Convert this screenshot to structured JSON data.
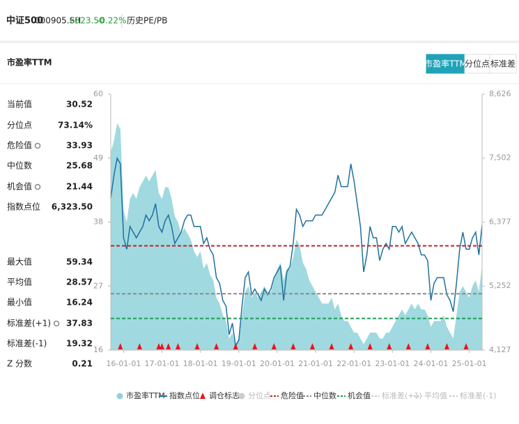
{
  "header": {
    "name": "中证500",
    "code": "000905.SH",
    "price": "6323.50",
    "change": "-0.22%",
    "link": "历史PE/PB"
  },
  "title": "市盈率TTM",
  "tabs": [
    {
      "label": "市盈率TTM",
      "active": true
    },
    {
      "label": "分位点",
      "active": false
    },
    {
      "label": "标准差",
      "active": false
    }
  ],
  "stats_top": [
    {
      "label": "当前值",
      "value": "30.52"
    },
    {
      "label": "分位点",
      "value": "73.14%"
    },
    {
      "label": "危险值",
      "value": "33.93",
      "settings": true
    },
    {
      "label": "中位数",
      "value": "25.68"
    },
    {
      "label": "机会值",
      "value": "21.44",
      "settings": true
    },
    {
      "label": "指数点位",
      "value": "6,323.50"
    }
  ],
  "stats_bottom": [
    {
      "label": "最大值",
      "value": "59.34"
    },
    {
      "label": "平均值",
      "value": "28.57"
    },
    {
      "label": "最小值",
      "value": "16.24"
    },
    {
      "label": "标准差(+1)",
      "value": "37.83",
      "settings": true
    },
    {
      "label": "标准差(-1)",
      "value": "19.32"
    },
    {
      "label": "Z 分数",
      "value": "0.21"
    }
  ],
  "chart_data": {
    "type": "area-line",
    "categories": [
      "15-09-01",
      "15-10-01",
      "15-11-01",
      "15-12-01",
      "16-01-01",
      "16-02-01",
      "16-03-01",
      "16-04-01",
      "16-05-01",
      "16-06-01",
      "16-07-01",
      "16-08-01",
      "16-09-01",
      "16-10-01",
      "16-11-01",
      "16-12-01",
      "17-01-01",
      "17-02-01",
      "17-03-01",
      "17-04-01",
      "17-05-01",
      "17-06-01",
      "17-07-01",
      "17-08-01",
      "17-09-01",
      "17-10-01",
      "17-11-01",
      "17-12-01",
      "18-01-01",
      "18-02-01",
      "18-03-01",
      "18-04-01",
      "18-05-01",
      "18-06-01",
      "18-07-01",
      "18-08-01",
      "18-09-01",
      "18-10-01",
      "18-11-01",
      "18-12-01",
      "19-01-01",
      "19-02-01",
      "19-03-01",
      "19-04-01",
      "19-05-01",
      "19-06-01",
      "19-07-01",
      "19-08-01",
      "19-09-01",
      "19-10-01",
      "19-11-01",
      "19-12-01",
      "20-01-01",
      "20-02-01",
      "20-03-01",
      "20-04-01",
      "20-05-01",
      "20-06-01",
      "20-07-01",
      "20-08-01",
      "20-09-01",
      "20-10-01",
      "20-11-01",
      "20-12-01",
      "21-01-01",
      "21-02-01",
      "21-03-01",
      "21-04-01",
      "21-05-01",
      "21-06-01",
      "21-07-01",
      "21-08-01",
      "21-09-01",
      "21-10-01",
      "21-11-01",
      "21-12-01",
      "22-01-01",
      "22-02-01",
      "22-03-01",
      "22-04-01",
      "22-05-01",
      "22-06-01",
      "22-07-01",
      "22-08-01",
      "22-09-01",
      "22-10-01",
      "22-11-01",
      "22-12-01",
      "23-01-01",
      "23-02-01",
      "23-03-01",
      "23-04-01",
      "23-05-01",
      "23-06-01",
      "23-07-01",
      "23-08-01",
      "23-09-01",
      "23-10-01",
      "23-11-01",
      "23-12-01",
      "24-01-01",
      "24-02-01",
      "24-03-01",
      "24-04-01",
      "24-05-01",
      "24-06-01",
      "24-07-01",
      "24-08-01",
      "24-09-01",
      "24-10-01",
      "24-11-01",
      "24-12-01",
      "25-01-01",
      "25-02-01",
      "25-03-01",
      "25-04-01",
      "25-05-01"
    ],
    "series": [
      {
        "name": "市盈率TTM",
        "color": "#8fd2da",
        "axis": "y",
        "values": [
          50,
          52,
          55,
          54,
          40,
          38,
          42,
          43,
          42,
          44,
          45,
          46,
          45,
          46,
          47,
          43,
          42,
          44,
          44,
          42,
          39,
          38,
          36,
          37,
          36,
          35,
          33,
          32,
          33,
          30,
          31,
          29,
          28,
          25,
          24,
          22,
          21,
          18,
          19,
          17,
          18,
          22,
          26,
          27,
          25,
          26,
          25,
          26,
          27,
          26,
          26,
          28,
          30,
          31,
          28,
          30,
          30,
          32,
          35,
          34,
          31,
          30,
          28,
          27,
          26,
          25,
          24,
          24,
          24,
          25,
          23,
          24,
          22,
          21,
          21,
          20,
          19,
          19,
          18,
          17,
          18,
          19,
          19,
          19,
          18,
          18,
          19,
          19,
          20,
          21,
          22,
          23,
          22,
          23,
          24,
          23,
          24,
          23,
          23,
          22,
          20,
          21,
          21,
          21,
          22,
          20,
          19,
          18,
          22,
          26,
          27,
          26,
          25,
          27,
          28,
          26,
          30.52
        ]
      },
      {
        "name": "指数点位",
        "color": "#1f6f9f",
        "axis": "y2",
        "values": [
          6800,
          7200,
          7500,
          7400,
          6100,
          5900,
          6300,
          6200,
          6100,
          6200,
          6300,
          6500,
          6400,
          6500,
          6700,
          6300,
          6200,
          6400,
          6500,
          6300,
          6000,
          6100,
          6200,
          6400,
          6500,
          6500,
          6300,
          6300,
          6300,
          6000,
          6100,
          5900,
          5800,
          5400,
          5300,
          5000,
          4900,
          4400,
          4600,
          4200,
          4300,
          4900,
          5400,
          5500,
          5100,
          5200,
          5100,
          5000,
          5200,
          5100,
          5200,
          5400,
          5500,
          5600,
          5000,
          5500,
          5600,
          6000,
          6600,
          6500,
          6300,
          6400,
          6400,
          6400,
          6500,
          6500,
          6500,
          6600,
          6700,
          6800,
          6900,
          7200,
          7000,
          7000,
          7000,
          7400,
          7100,
          6700,
          6300,
          5500,
          5800,
          6300,
          6100,
          6100,
          5700,
          5900,
          6000,
          5900,
          6300,
          6300,
          6200,
          6300,
          6000,
          6100,
          6200,
          6100,
          6000,
          5800,
          5800,
          5700,
          5000,
          5300,
          5400,
          5400,
          5400,
          5100,
          5000,
          4800,
          5300,
          5900,
          6200,
          5900,
          5900,
          6100,
          6200,
          5800,
          6323.5
        ]
      }
    ],
    "markers": {
      "name": "调仓标志",
      "color": "#e8141c",
      "dates": [
        "15-12-01",
        "16-06-01",
        "16-12-01",
        "17-01-01",
        "17-03-01",
        "17-06-01",
        "17-12-01",
        "18-06-01",
        "18-12-01",
        "19-06-01",
        "19-12-01",
        "20-06-01",
        "20-12-01",
        "21-06-01",
        "21-12-01",
        "22-06-01",
        "22-12-01",
        "23-06-01",
        "23-12-01",
        "24-06-01",
        "24-12-01"
      ]
    },
    "percentile": {
      "name": "分位点",
      "color": "#cccccc",
      "visible": false
    },
    "reference_lines": [
      {
        "name": "危险值",
        "value": 33.93,
        "color": "#b9252a",
        "visible": true
      },
      {
        "name": "中位数",
        "value": 25.68,
        "color": "#8a8a8a",
        "visible": true
      },
      {
        "name": "机会值",
        "value": 21.44,
        "color": "#1f9e55",
        "visible": true
      },
      {
        "name": "标准差(+1)",
        "value": 37.83,
        "color": "#cccccc",
        "visible": false
      },
      {
        "name": "平均值",
        "value": 28.57,
        "color": "#cccccc",
        "visible": false
      },
      {
        "name": "标准差(-1)",
        "value": 19.32,
        "color": "#cccccc",
        "visible": false
      }
    ],
    "ylim": [
      16,
      60
    ],
    "yticks": [
      16,
      27,
      38,
      49,
      60
    ],
    "y2lim": [
      4127,
      8626
    ],
    "y2ticks": [
      {
        "value": 4127,
        "label": "4,127"
      },
      {
        "value": 5252,
        "label": "5,252"
      },
      {
        "value": 6377,
        "label": "6,377"
      },
      {
        "value": 7502,
        "label": "7,502"
      },
      {
        "value": 8626,
        "label": "8,626"
      }
    ],
    "xticks": [
      "16-01-01",
      "17-01-01",
      "18-01-01",
      "19-01-01",
      "20-01-01",
      "21-01-01",
      "22-01-01",
      "23-01-01",
      "24-01-01",
      "25-01-01"
    ]
  }
}
